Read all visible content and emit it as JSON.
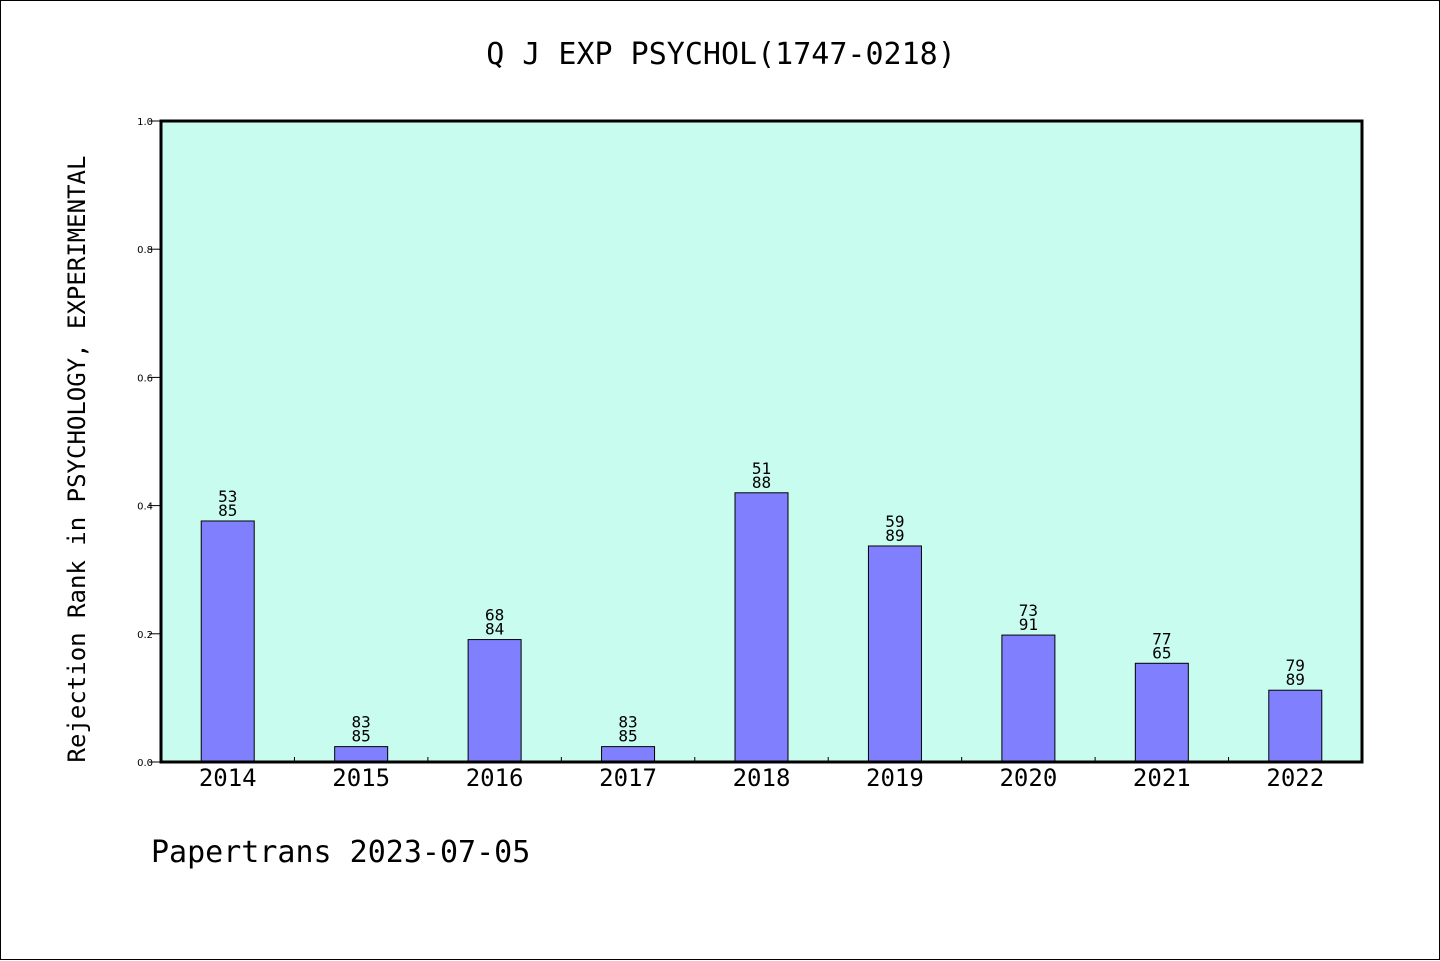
{
  "chart_data": {
    "type": "bar",
    "title": "Q J EXP PSYCHOL(1747-0218)",
    "ylabel": "Rejection Rank in PSYCHOLOGY, EXPERIMENTAL",
    "xlabel": "",
    "ylim": [
      0,
      1.0
    ],
    "yticks": [
      "0.0",
      "0.2",
      "0.4",
      "0.6",
      "0.8",
      "1.0"
    ],
    "categories": [
      "2014",
      "2015",
      "2016",
      "2017",
      "2018",
      "2019",
      "2020",
      "2021",
      "2022"
    ],
    "values": [
      0.376,
      0.024,
      0.191,
      0.024,
      0.42,
      0.337,
      0.198,
      0.154,
      0.112
    ],
    "labels_top": [
      "53",
      "83",
      "68",
      "83",
      "51",
      "59",
      "73",
      "77",
      "79"
    ],
    "labels_bottom": [
      "85",
      "85",
      "84",
      "85",
      "88",
      "89",
      "91",
      "65",
      "89"
    ],
    "grid": false,
    "colors": {
      "bar": "#8080ff",
      "plot_bg": "#c8fcee"
    }
  },
  "footer": "Papertrans 2023-07-05"
}
